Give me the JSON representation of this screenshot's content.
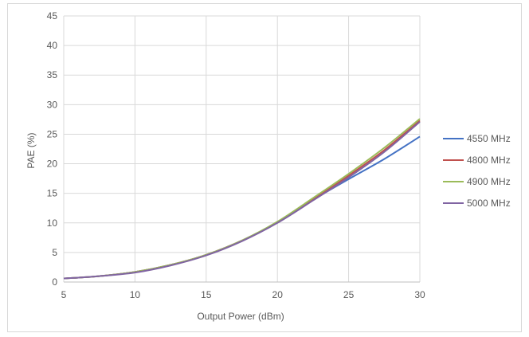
{
  "chart_data": {
    "type": "line",
    "title": "",
    "xlabel": "Output Power (dBm)",
    "ylabel": "PAE (%)",
    "xlim": [
      5,
      30
    ],
    "ylim": [
      0,
      45
    ],
    "x_ticks": [
      5,
      10,
      15,
      20,
      25,
      30
    ],
    "y_ticks": [
      0,
      5,
      10,
      15,
      20,
      25,
      30,
      35,
      40,
      45
    ],
    "grid": true,
    "legend_position": "right",
    "series": [
      {
        "name": "4550 MHz",
        "color": "#4472C4",
        "x": [
          5,
          7.5,
          10,
          12.5,
          15,
          17.5,
          20,
          22.5,
          25,
          27.5,
          30
        ],
        "y": [
          0.6,
          1.0,
          1.7,
          2.9,
          4.6,
          7.0,
          10.1,
          13.9,
          17.4,
          20.8,
          24.6
        ]
      },
      {
        "name": "4800 MHz",
        "color": "#C0504D",
        "x": [
          5,
          7.5,
          10,
          12.5,
          15,
          17.5,
          20,
          22.5,
          25,
          27.5,
          30
        ],
        "y": [
          0.6,
          1.0,
          1.7,
          2.9,
          4.6,
          7.0,
          10.1,
          14.0,
          18.0,
          22.3,
          27.3
        ]
      },
      {
        "name": "4900 MHz",
        "color": "#9BBB59",
        "x": [
          5,
          7.5,
          10,
          12.5,
          15,
          17.5,
          20,
          22.5,
          25,
          27.5,
          30
        ],
        "y": [
          0.6,
          1.0,
          1.7,
          2.9,
          4.6,
          7.0,
          10.2,
          14.2,
          18.3,
          22.7,
          27.6
        ]
      },
      {
        "name": "5000 MHz",
        "color": "#8064A2",
        "x": [
          5,
          7.5,
          10,
          12.5,
          15,
          17.5,
          20,
          22.5,
          25,
          27.5,
          30
        ],
        "y": [
          0.6,
          1.0,
          1.6,
          2.8,
          4.5,
          6.9,
          10.0,
          13.8,
          17.7,
          22.0,
          27.1
        ]
      }
    ]
  }
}
